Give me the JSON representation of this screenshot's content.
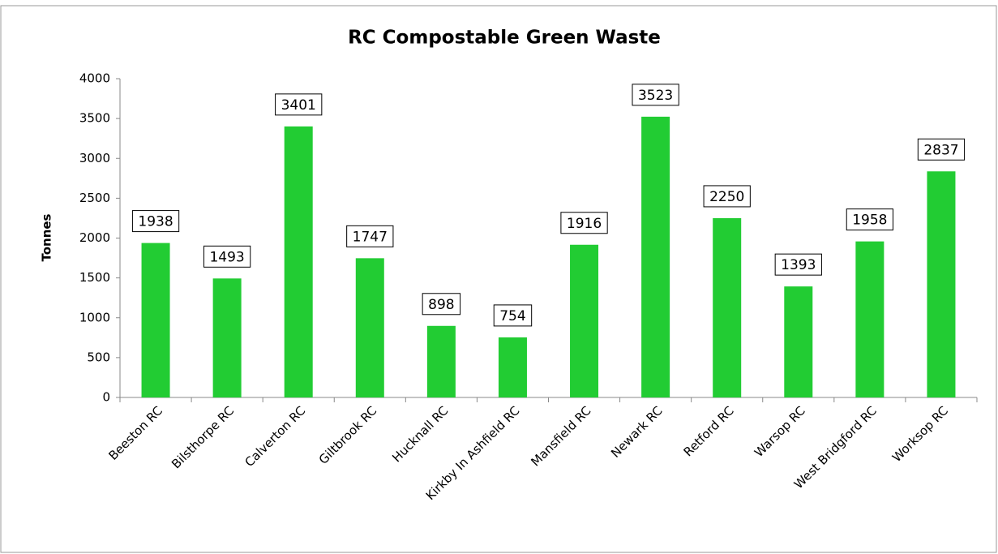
{
  "chart_data": {
    "type": "bar",
    "title": "RC Compostable Green Waste",
    "y_label": "Tonnes",
    "categories": [
      "Beeston RC",
      "Bilsthorpe RC",
      "Calverton RC",
      "Giltbrook RC",
      "Hucknall RC",
      "Kirkby In Ashfield RC",
      "Mansfield RC",
      "Newark RC",
      "Retford RC",
      "Warsop RC",
      "West Bridgford RC",
      "Worksop RC"
    ],
    "values": [
      1938,
      1493,
      3401,
      1747,
      898,
      754,
      1916,
      3523,
      2250,
      1393,
      1958,
      2837
    ],
    "color": "#22cc33",
    "ylim": [
      0,
      4000
    ],
    "yticks": [
      0,
      500,
      1000,
      1500,
      2000,
      2500,
      3000,
      3500,
      4000
    ],
    "grid": false
  }
}
